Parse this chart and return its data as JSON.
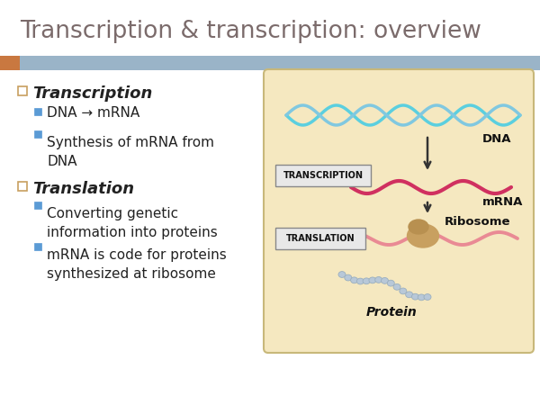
{
  "title": "Transcription & transcription: overview",
  "title_color": "#7b6b6b",
  "title_fontsize": 19,
  "bg_color": "#ffffff",
  "header_bar_color": "#9ab4c8",
  "header_bar_orange": "#c97840",
  "bullet1_heading": "Transcription",
  "bullet1_sub1": "DNA → mRNA",
  "bullet1_sub2": "Synthesis of mRNA from\nDNA",
  "bullet2_heading": "Translation",
  "bullet2_sub1": "Converting genetic\ninformation into proteins",
  "bullet2_sub2": "mRNA is code for proteins\nsynthesized at ribosome",
  "bullet_color": "#222222",
  "box_bg_color": "#f5e8c0",
  "box_border_color": "#c8b87a",
  "diagram_label_transcription": "Transcription",
  "diagram_label_translation": "Translation",
  "diagram_dna_label": "DNA",
  "diagram_mrna_label": "mRNA",
  "diagram_ribosome_label": "Ribosome",
  "diagram_protein_label": "Protein",
  "square_bullet_color_outer": "#c8a060",
  "sub_square_color": "#5b9bd5",
  "dna_color1": "#5bcfdf",
  "dna_color2": "#80c8e0",
  "mrna_color": "#d03060",
  "mrna_light_color": "#e88090",
  "protein_color": "#b8c8d8",
  "ribosome_color": "#c8a060",
  "arrow_color": "#333333",
  "label_box_bg": "#e8e8e8",
  "label_box_edge": "#888888",
  "text_label_color": "#111111"
}
